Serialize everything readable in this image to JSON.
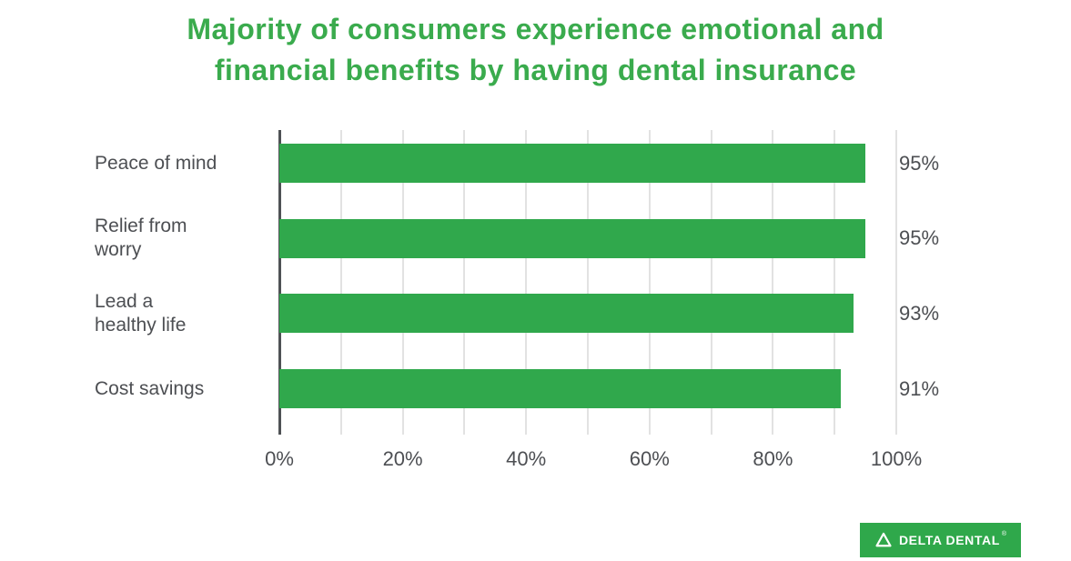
{
  "title": {
    "line1": "Majority of consumers experience emotional and",
    "line2": "financial benefits by having dental insurance"
  },
  "chart_data": {
    "type": "bar",
    "orientation": "horizontal",
    "title": "Majority of consumers experience emotional and financial benefits by having dental insurance",
    "categories": [
      "Peace of mind",
      "Relief from worry",
      "Lead a healthy life",
      "Cost savings"
    ],
    "category_lines": [
      [
        "Peace of mind"
      ],
      [
        "Relief from",
        "worry"
      ],
      [
        "Lead a",
        "healthy life"
      ],
      [
        "Cost savings"
      ]
    ],
    "values": [
      95,
      95,
      93,
      91
    ],
    "value_labels": [
      "95%",
      "95%",
      "93%",
      "91%"
    ],
    "xlim": [
      0,
      100
    ],
    "x_ticks": [
      "0%",
      "20%",
      "40%",
      "60%",
      "80%",
      "100%"
    ],
    "gridline_step": 10,
    "grid": true,
    "legend": false,
    "bar_color": "#30a84c"
  },
  "colors": {
    "title_green": "#3aab4d",
    "bar_green": "#30a84c",
    "text_gray": "#4d4f53",
    "grid_gray": "#e2e2e2",
    "axis_dark": "#4f5255",
    "logo_green": "#2fa84b"
  },
  "logo": {
    "brand": "DELTA DENTAL",
    "registered_mark": "®"
  }
}
